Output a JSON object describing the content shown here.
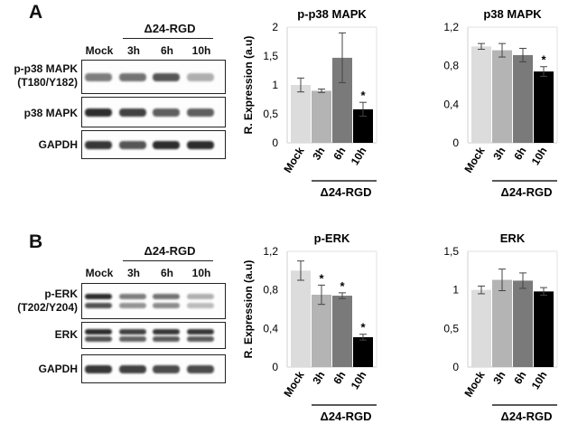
{
  "panels": [
    {
      "letter": "A",
      "group_label": "Δ24-RGD",
      "lanes": [
        "Mock",
        "3h",
        "6h",
        "10h"
      ],
      "blots": [
        {
          "label_lines": [
            "p-p38 MAPK",
            "(T180/Y182)"
          ],
          "intensity": [
            0.55,
            0.6,
            0.75,
            0.3
          ]
        },
        {
          "label_lines": [
            "p38 MAPK"
          ],
          "intensity": [
            0.95,
            0.85,
            0.7,
            0.7
          ]
        },
        {
          "label_lines": [
            "GAPDH"
          ],
          "intensity": [
            0.9,
            0.75,
            0.95,
            0.95
          ]
        }
      ]
    },
    {
      "letter": "B",
      "group_label": "Δ24-RGD",
      "lanes": [
        "Mock",
        "3h",
        "6h",
        "10h"
      ],
      "blots": [
        {
          "label_lines": [
            "p-ERK",
            "(T202/Y204)"
          ],
          "intensity": [
            0.95,
            0.55,
            0.6,
            0.3
          ],
          "double": true
        },
        {
          "label_lines": [
            "ERK"
          ],
          "intensity": [
            0.95,
            0.85,
            0.9,
            0.9
          ],
          "double": true
        },
        {
          "label_lines": [
            "GAPDH"
          ],
          "intensity": [
            0.9,
            0.85,
            0.8,
            0.8
          ]
        }
      ]
    }
  ],
  "chart_data": [
    {
      "type": "bar",
      "title": "p-p38 MAPK",
      "ylabel": "R. Expression (a.u)",
      "xlabel": "Δ24-RGD",
      "categories": [
        "Mock",
        "3h",
        "6h",
        "10h"
      ],
      "values": [
        1.0,
        0.9,
        1.47,
        0.58
      ],
      "errors": [
        0.12,
        0.03,
        0.43,
        0.12
      ],
      "significance": [
        "",
        "",
        "",
        "*"
      ],
      "yticks": [
        "0",
        "0,5",
        "1",
        "1,5",
        "2"
      ],
      "ylim": [
        0,
        2
      ],
      "colors": [
        "#dcdcdc",
        "#b4b4b4",
        "#7a7a7a",
        "#000000"
      ]
    },
    {
      "type": "bar",
      "title": "p38 MAPK",
      "ylabel": "",
      "xlabel": "Δ24-RGD",
      "categories": [
        "Mock",
        "3h",
        "6h",
        "10h"
      ],
      "values": [
        1.0,
        0.96,
        0.91,
        0.74
      ],
      "errors": [
        0.03,
        0.07,
        0.07,
        0.05
      ],
      "significance": [
        "",
        "",
        "",
        "*"
      ],
      "yticks": [
        "0",
        "0,4",
        "0,8",
        "1,2"
      ],
      "ylim": [
        0,
        1.2
      ],
      "colors": [
        "#dcdcdc",
        "#b4b4b4",
        "#7a7a7a",
        "#000000"
      ]
    },
    {
      "type": "bar",
      "title": "p-ERK",
      "ylabel": "R. Expression (a.u)",
      "xlabel": "Δ24-RGD",
      "categories": [
        "Mock",
        "3h",
        "6h",
        "10h"
      ],
      "values": [
        1.0,
        0.75,
        0.74,
        0.31
      ],
      "errors": [
        0.1,
        0.1,
        0.03,
        0.03
      ],
      "significance": [
        "",
        "*",
        "*",
        "*"
      ],
      "yticks": [
        "0",
        "0,4",
        "0,8",
        "1,2"
      ],
      "ylim": [
        0,
        1.2
      ],
      "colors": [
        "#dcdcdc",
        "#b4b4b4",
        "#7a7a7a",
        "#000000"
      ]
    },
    {
      "type": "bar",
      "title": "ERK",
      "ylabel": "",
      "xlabel": "Δ24-RGD",
      "categories": [
        "Mock",
        "3h",
        "6h",
        "10h"
      ],
      "values": [
        1.0,
        1.13,
        1.12,
        0.98
      ],
      "errors": [
        0.05,
        0.14,
        0.1,
        0.05
      ],
      "significance": [
        "",
        "",
        "",
        ""
      ],
      "yticks": [
        "0",
        "0,5",
        "1",
        "1,5"
      ],
      "ylim": [
        0,
        1.5
      ],
      "colors": [
        "#dcdcdc",
        "#b4b4b4",
        "#7a7a7a",
        "#000000"
      ]
    }
  ]
}
